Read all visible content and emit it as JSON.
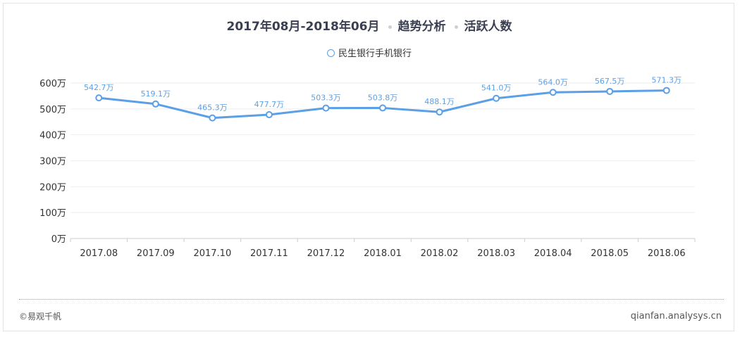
{
  "header": {
    "period": "2017年08月-2018年06月",
    "section": "趋势分析",
    "metric": "活跃人数"
  },
  "legend": {
    "label": "民生银行手机银行"
  },
  "footer": {
    "left": "©易观千帆",
    "right": "qianfan.analysys.cn"
  },
  "chart_data": {
    "type": "line",
    "categories": [
      "2017.08",
      "2017.09",
      "2017.10",
      "2017.11",
      "2017.12",
      "2018.01",
      "2018.02",
      "2018.03",
      "2018.04",
      "2018.05",
      "2018.06"
    ],
    "series": [
      {
        "name": "民生银行手机银行",
        "values": [
          542.7,
          519.1,
          465.3,
          477.7,
          503.3,
          503.8,
          488.1,
          541.0,
          564.0,
          567.5,
          571.3
        ],
        "labels": [
          "542.7万",
          "519.1万",
          "465.3万",
          "477.7万",
          "503.3万",
          "503.8万",
          "488.1万",
          "541.0万",
          "564.0万",
          "567.5万",
          "571.3万"
        ]
      }
    ],
    "ylim": [
      0,
      600
    ],
    "yticks": [
      0,
      100,
      200,
      300,
      400,
      500,
      600
    ],
    "ytick_labels": [
      "0万",
      "100万",
      "200万",
      "300万",
      "400万",
      "500万",
      "600万"
    ],
    "grid": true,
    "legend_position": "top",
    "colors": {
      "line": "#5b9fe6",
      "label": "#5b9fe6",
      "grid": "#eeeeee",
      "axis": "#cccccc"
    }
  }
}
